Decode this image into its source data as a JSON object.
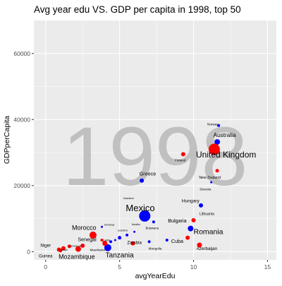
{
  "chart_data": {
    "type": "scatter",
    "title": "Avg year edu VS. GDP per capita in 1998, top 50",
    "watermark": "1998",
    "xlabel": "avgYearEdu",
    "ylabel": "GDPperCapita",
    "xlim": [
      -0.8,
      15.6
    ],
    "ylim": [
      -2500,
      70000
    ],
    "x_ticks": [
      0,
      5,
      10,
      15
    ],
    "x_tick_labels": [
      "0",
      "5",
      "10",
      "15"
    ],
    "y_ticks": [
      0,
      20000,
      40000,
      60000
    ],
    "y_tick_labels": [
      "0",
      "20000",
      "40000",
      "60000"
    ],
    "grid": true,
    "legend": "none",
    "colors": {
      "red": "#ff0000",
      "blue": "#0000ff",
      "panel": "#ebebeb",
      "grid": "#ffffff",
      "watermark": "#c0c0c0"
    },
    "points": [
      {
        "x": 11.7,
        "y": 38200,
        "size": 2.0,
        "color": "blue"
      },
      {
        "x": 11.6,
        "y": 33200,
        "size": 4.0,
        "color": "blue"
      },
      {
        "x": 11.4,
        "y": 31000,
        "size": 8.0,
        "color": "red"
      },
      {
        "x": 9.3,
        "y": 29500,
        "size": 3.0,
        "color": "red"
      },
      {
        "x": 11.6,
        "y": 24500,
        "size": 2.5,
        "color": "red"
      },
      {
        "x": 6.5,
        "y": 21500,
        "size": 3.0,
        "color": "blue"
      },
      {
        "x": 11.2,
        "y": 21000,
        "size": 1.5,
        "color": "blue"
      },
      {
        "x": 6.7,
        "y": 10800,
        "size": 8.0,
        "color": "blue"
      },
      {
        "x": 10.0,
        "y": 9500,
        "size": 3.0,
        "color": "red"
      },
      {
        "x": 10.5,
        "y": 14000,
        "size": 3.0,
        "color": "blue"
      },
      {
        "x": 9.8,
        "y": 7000,
        "size": 4.0,
        "color": "blue"
      },
      {
        "x": 9.6,
        "y": 4200,
        "size": 3.0,
        "color": "red"
      },
      {
        "x": 10.4,
        "y": 2000,
        "size": 3.5,
        "color": "red"
      },
      {
        "x": 8.2,
        "y": 3500,
        "size": 2.0,
        "color": "blue"
      },
      {
        "x": 3.2,
        "y": 5000,
        "size": 5.0,
        "color": "red"
      },
      {
        "x": 4.2,
        "y": 1200,
        "size": 5.0,
        "color": "blue"
      },
      {
        "x": 4.0,
        "y": 2500,
        "size": 3.5,
        "color": "red"
      },
      {
        "x": 2.5,
        "y": 1800,
        "size": 3.0,
        "color": "red"
      },
      {
        "x": 2.2,
        "y": 800,
        "size": 4.0,
        "color": "red"
      },
      {
        "x": 1.2,
        "y": 1000,
        "size": 3.0,
        "color": "red"
      },
      {
        "x": 0.9,
        "y": 600,
        "size": 3.0,
        "color": "red"
      },
      {
        "x": 1.6,
        "y": 1600,
        "size": 2.5,
        "color": "red"
      },
      {
        "x": 1.0,
        "y": 300,
        "size": 2.5,
        "color": "red"
      },
      {
        "x": 5.9,
        "y": 2500,
        "size": 3.0,
        "color": "red"
      },
      {
        "x": 5.0,
        "y": 4200,
        "size": 2.5,
        "color": "blue"
      },
      {
        "x": 5.5,
        "y": 5000,
        "size": 2.0,
        "color": "blue"
      },
      {
        "x": 6.0,
        "y": 6000,
        "size": 1.5,
        "color": "blue"
      },
      {
        "x": 7.3,
        "y": 9000,
        "size": 2.0,
        "color": "blue"
      },
      {
        "x": 3.8,
        "y": 7500,
        "size": 1.5,
        "color": "blue"
      },
      {
        "x": 7.0,
        "y": 3000,
        "size": 2.0,
        "color": "blue"
      },
      {
        "x": 4.7,
        "y": 3500,
        "size": 1.5,
        "color": "blue"
      },
      {
        "x": 3.8,
        "y": 3500,
        "size": 2.0,
        "color": "red"
      },
      {
        "x": 4.4,
        "y": 3000,
        "size": 2.0,
        "color": "blue"
      }
    ],
    "labels": [
      {
        "text": "Norway",
        "x": 11.3,
        "y": 38200,
        "size": 4.6
      },
      {
        "text": "Australia",
        "x": 12.1,
        "y": 34700,
        "size": 8.2
      },
      {
        "text": "United Kingdom",
        "x": 12.2,
        "y": 28500,
        "size": 12.0
      },
      {
        "text": "Finland",
        "x": 9.1,
        "y": 27300,
        "size": 4.6
      },
      {
        "text": "New Zealand",
        "x": 11.1,
        "y": 22100,
        "size": 5.2
      },
      {
        "text": "Greece",
        "x": 6.9,
        "y": 23100,
        "size": 7.2
      },
      {
        "text": "Slovenia",
        "x": 10.8,
        "y": 18600,
        "size": 4.2
      },
      {
        "text": "Hungary",
        "x": 9.8,
        "y": 14900,
        "size": 6.6
      },
      {
        "text": "Mexico",
        "x": 6.4,
        "y": 12300,
        "size": 13.0
      },
      {
        "text": "Lithuania",
        "x": 10.9,
        "y": 11100,
        "size": 5.2
      },
      {
        "text": "Bulgaria",
        "x": 8.9,
        "y": 8800,
        "size": 7.2
      },
      {
        "text": "Romania",
        "x": 11.0,
        "y": 5300,
        "size": 10.5
      },
      {
        "text": "Cuba",
        "x": 8.9,
        "y": 2600,
        "size": 7.2
      },
      {
        "text": "Azerbaijan",
        "x": 10.9,
        "y": 450,
        "size": 6.2
      },
      {
        "text": "Mongolia",
        "x": 7.4,
        "y": 600,
        "size": 4.6
      },
      {
        "text": "Zambia",
        "x": 6.0,
        "y": 2300,
        "size": 6.2
      },
      {
        "text": "Tanzania",
        "x": 5.0,
        "y": -1800,
        "size": 10.0
      },
      {
        "text": "Mauritania",
        "x": 3.5,
        "y": 200,
        "size": 4.6
      },
      {
        "text": "Lesotho",
        "x": 5.2,
        "y": 6200,
        "size": 4.0
      },
      {
        "text": "Laos",
        "x": 4.1,
        "y": 3200,
        "size": 4.6
      },
      {
        "text": "Morocco",
        "x": 2.6,
        "y": 6600,
        "size": 9.0
      },
      {
        "text": "Senegal",
        "x": 2.8,
        "y": 3200,
        "size": 7.2
      },
      {
        "text": "Niger",
        "x": 0.0,
        "y": 1500,
        "size": 6.2
      },
      {
        "text": "Mozambique",
        "x": 2.1,
        "y": -2200,
        "size": 9.0
      },
      {
        "text": "Guinea",
        "x": 0.0,
        "y": -1800,
        "size": 6.0
      },
      {
        "text": "Cameroon",
        "x": 2.0,
        "y": 1500,
        "size": 4.0
      },
      {
        "text": "Kenya",
        "x": 1.2,
        "y": 300,
        "size": 4.0
      },
      {
        "text": "Botswana",
        "x": 7.2,
        "y": 6800,
        "size": 4.2
      },
      {
        "text": "Honduras",
        "x": 4.3,
        "y": 7900,
        "size": 3.4
      },
      {
        "text": "Namibia",
        "x": 6.1,
        "y": 8000,
        "size": 3.2
      },
      {
        "text": "Swaziland",
        "x": 5.6,
        "y": 15900,
        "size": 3.2
      }
    ]
  }
}
